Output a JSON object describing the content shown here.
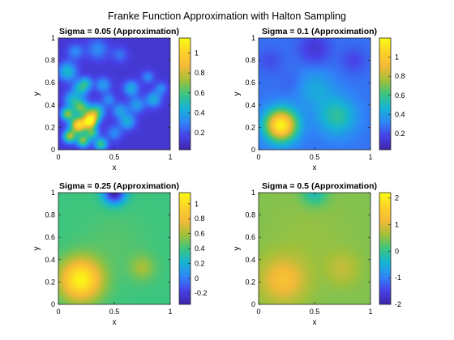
{
  "figure": {
    "title": "Franke Function Approximation with Halton Sampling"
  },
  "colormap": [
    "#3e26a8",
    "#4742e8",
    "#2e87f7",
    "#16b4d4",
    "#3cc57f",
    "#a4c039",
    "#f3b938",
    "#fdd328",
    "#f9fb15"
  ],
  "chart_data": [
    {
      "type": "heatmap",
      "title": "Sigma = 0.05 (Approximation)",
      "xlabel": "x",
      "ylabel": "y",
      "xlim": [
        0,
        1
      ],
      "ylim": [
        0,
        1
      ],
      "xticks": [
        0,
        0.5,
        1
      ],
      "yticks": [
        0,
        0.2,
        0.4,
        0.6,
        0.8,
        1
      ],
      "colorbar": {
        "range": [
          0.03,
          1.15
        ],
        "ticks": [
          0.2,
          0.4,
          0.6,
          0.8,
          1
        ]
      },
      "base": 0.12,
      "blobs": [
        [
          0.08,
          0.7,
          0.06,
          0.35
        ],
        [
          0.2,
          0.55,
          0.05,
          0.35
        ],
        [
          0.12,
          0.45,
          0.05,
          0.3
        ],
        [
          0.4,
          0.58,
          0.05,
          0.25
        ],
        [
          0.25,
          0.6,
          0.04,
          0.25
        ],
        [
          0.35,
          0.9,
          0.07,
          0.2
        ],
        [
          0.15,
          0.88,
          0.05,
          0.2
        ],
        [
          0.55,
          0.85,
          0.05,
          0.15
        ],
        [
          0.65,
          0.55,
          0.05,
          0.3
        ],
        [
          0.7,
          0.4,
          0.05,
          0.25
        ],
        [
          0.85,
          0.45,
          0.05,
          0.3
        ],
        [
          0.62,
          0.25,
          0.05,
          0.3
        ],
        [
          0.5,
          0.15,
          0.05,
          0.2
        ],
        [
          0.35,
          0.35,
          0.05,
          0.3
        ],
        [
          0.55,
          0.35,
          0.05,
          0.25
        ],
        [
          0.45,
          0.45,
          0.04,
          0.2
        ],
        [
          0.2,
          0.38,
          0.05,
          0.5
        ],
        [
          0.3,
          0.3,
          0.05,
          0.5
        ],
        [
          0.18,
          0.22,
          0.05,
          0.9
        ],
        [
          0.28,
          0.25,
          0.04,
          0.75
        ],
        [
          0.08,
          0.32,
          0.04,
          0.55
        ],
        [
          0.22,
          0.08,
          0.04,
          0.55
        ],
        [
          0.1,
          0.12,
          0.04,
          0.6
        ],
        [
          0.38,
          0.05,
          0.04,
          0.45
        ],
        [
          0.3,
          0.15,
          0.04,
          0.45
        ],
        [
          0.8,
          0.65,
          0.04,
          0.2
        ],
        [
          0.92,
          0.55,
          0.04,
          0.2
        ]
      ]
    },
    {
      "type": "heatmap",
      "title": "Sigma = 0.1 (Approximation)",
      "xlabel": "x",
      "ylabel": "y",
      "xlim": [
        0,
        1
      ],
      "ylim": [
        0,
        1
      ],
      "xticks": [
        0,
        0.5,
        1
      ],
      "yticks": [
        0,
        0.2,
        0.4,
        0.6,
        0.8,
        1
      ],
      "colorbar": {
        "range": [
          0.03,
          1.2
        ],
        "ticks": [
          0.2,
          0.4,
          0.6,
          0.8,
          1
        ]
      },
      "base": 0.28,
      "blobs": [
        [
          0.2,
          0.22,
          0.1,
          0.9
        ],
        [
          0.7,
          0.3,
          0.12,
          0.28
        ],
        [
          0.5,
          0.55,
          0.12,
          0.15
        ],
        [
          0.5,
          0.9,
          0.1,
          -0.15
        ],
        [
          0.85,
          0.8,
          0.08,
          -0.1
        ],
        [
          0.3,
          0.6,
          0.08,
          -0.05
        ],
        [
          0.1,
          0.8,
          0.08,
          -0.08
        ]
      ]
    },
    {
      "type": "heatmap",
      "title": "Sigma = 0.25 (Approximation)",
      "xlabel": "x",
      "ylabel": "y",
      "xlim": [
        0,
        1
      ],
      "ylim": [
        0,
        1
      ],
      "xticks": [
        0,
        0.5,
        1
      ],
      "yticks": [
        0,
        0.2,
        0.4,
        0.6,
        0.8,
        1
      ],
      "colorbar": {
        "range": [
          -0.35,
          1.15
        ],
        "ticks": [
          -0.2,
          0,
          0.2,
          0.4,
          0.6,
          0.8,
          1
        ]
      },
      "base": 0.4,
      "blobs": [
        [
          0.2,
          0.22,
          0.13,
          0.72
        ],
        [
          0.75,
          0.33,
          0.08,
          0.18
        ],
        [
          0.5,
          1.0,
          0.07,
          -0.75
        ],
        [
          0.5,
          0.55,
          0.2,
          0.05
        ]
      ]
    },
    {
      "type": "heatmap",
      "title": "Sigma = 0.5 (Approximation)",
      "xlabel": "x",
      "ylabel": "y",
      "xlim": [
        0,
        1
      ],
      "ylim": [
        0,
        1
      ],
      "xticks": [
        0,
        0.5,
        1
      ],
      "yticks": [
        0,
        0.2,
        0.4,
        0.6,
        0.8,
        1
      ],
      "colorbar": {
        "range": [
          -2,
          2.2
        ],
        "ticks": [
          -2,
          -1,
          0,
          1,
          2
        ]
      },
      "base": 0.45,
      "blobs": [
        [
          0.22,
          0.22,
          0.14,
          0.85
        ],
        [
          0.75,
          0.32,
          0.1,
          0.35
        ],
        [
          0.5,
          1.0,
          0.08,
          -0.7
        ],
        [
          0.45,
          0.6,
          0.25,
          0.1
        ]
      ]
    }
  ]
}
